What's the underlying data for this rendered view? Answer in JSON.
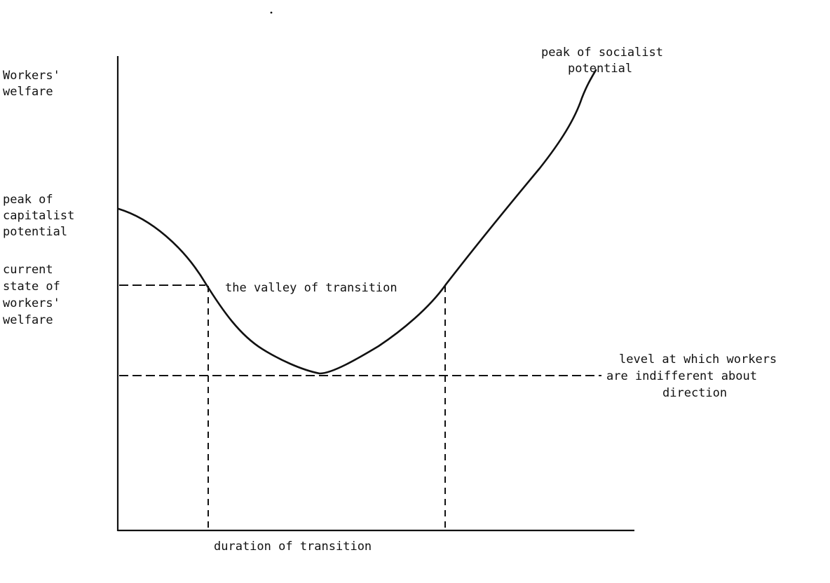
{
  "labels": {
    "y_axis": [
      "Workers'",
      "welfare"
    ],
    "capitalist_peak": [
      "peak of",
      "capitalist",
      "potential"
    ],
    "current_state": [
      "current",
      "state of",
      "workers'",
      "welfare"
    ],
    "socialist_peak": [
      "peak of socialist",
      "potential"
    ],
    "valley": "the valley of transition",
    "indifference": [
      "level at which workers",
      "are indifferent about",
      "direction"
    ],
    "x_axis": "duration of transition"
  }
}
